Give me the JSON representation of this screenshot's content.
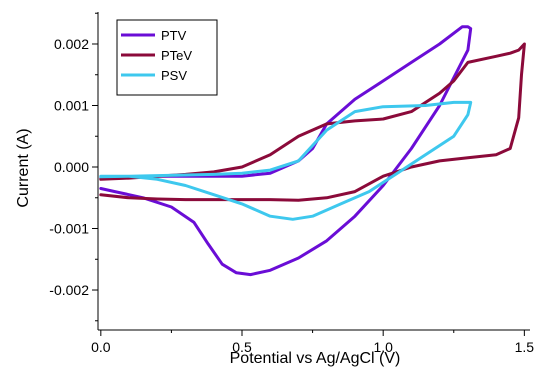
{
  "chart_data": {
    "type": "line",
    "xlabel": "Potential vs Ag/AgCl (V)",
    "ylabel": "Current (A)",
    "xlim": [
      -0.01,
      1.52
    ],
    "ylim": [
      -0.00265,
      0.00252
    ],
    "x_ticks": [
      0.0,
      0.5,
      1.0,
      1.5
    ],
    "x_tick_labels": [
      "0.0",
      "0.5",
      "1.0",
      "1.5"
    ],
    "y_ticks": [
      -0.002,
      -0.001,
      0.0,
      0.001,
      0.002
    ],
    "y_tick_labels": [
      "-0.002",
      "-0.001",
      "0.000",
      "0.001",
      "0.002"
    ],
    "grid": false,
    "legend_position": "top-left",
    "series": [
      {
        "name": "PTV",
        "color": "#6a0dd6",
        "points": [
          [
            0.0,
            -0.00035
          ],
          [
            0.05,
            -0.0004
          ],
          [
            0.15,
            -0.0005
          ],
          [
            0.25,
            -0.00065
          ],
          [
            0.33,
            -0.0009
          ],
          [
            0.38,
            -0.00125
          ],
          [
            0.43,
            -0.00158
          ],
          [
            0.48,
            -0.00172
          ],
          [
            0.53,
            -0.00175
          ],
          [
            0.6,
            -0.00168
          ],
          [
            0.7,
            -0.00148
          ],
          [
            0.8,
            -0.0012
          ],
          [
            0.9,
            -0.0008
          ],
          [
            1.0,
            -0.0003
          ],
          [
            1.1,
            0.0003
          ],
          [
            1.2,
            0.001
          ],
          [
            1.3,
            0.0019
          ],
          [
            1.31,
            0.00225
          ],
          [
            1.3,
            0.00228
          ],
          [
            1.28,
            0.00228
          ],
          [
            1.2,
            0.002
          ],
          [
            1.1,
            0.0017
          ],
          [
            1.0,
            0.0014
          ],
          [
            0.9,
            0.0011
          ],
          [
            0.8,
            0.0007
          ],
          [
            0.75,
            0.0003
          ],
          [
            0.7,
            0.0001
          ],
          [
            0.6,
            -0.0001
          ],
          [
            0.5,
            -0.00015
          ],
          [
            0.4,
            -0.00015
          ],
          [
            0.3,
            -0.00015
          ],
          [
            0.2,
            -0.00015
          ],
          [
            0.1,
            -0.00016
          ],
          [
            0.0,
            -0.00018
          ]
        ]
      },
      {
        "name": "PTeV",
        "color": "#8b0a3a",
        "points": [
          [
            0.0,
            -0.00045
          ],
          [
            0.1,
            -0.0005
          ],
          [
            0.2,
            -0.00052
          ],
          [
            0.3,
            -0.00053
          ],
          [
            0.4,
            -0.00053
          ],
          [
            0.5,
            -0.00053
          ],
          [
            0.6,
            -0.00053
          ],
          [
            0.7,
            -0.00054
          ],
          [
            0.8,
            -0.0005
          ],
          [
            0.9,
            -0.0004
          ],
          [
            1.0,
            -0.00015
          ],
          [
            1.1,
            0.0
          ],
          [
            1.2,
            0.0001
          ],
          [
            1.3,
            0.00015
          ],
          [
            1.4,
            0.0002
          ],
          [
            1.45,
            0.0003
          ],
          [
            1.48,
            0.0008
          ],
          [
            1.49,
            0.0015
          ],
          [
            1.5,
            0.002
          ],
          [
            1.48,
            0.0019
          ],
          [
            1.45,
            0.00185
          ],
          [
            1.4,
            0.0018
          ],
          [
            1.3,
            0.0017
          ],
          [
            1.25,
            0.0014
          ],
          [
            1.2,
            0.0012
          ],
          [
            1.1,
            0.0009
          ],
          [
            1.0,
            0.00078
          ],
          [
            0.9,
            0.00075
          ],
          [
            0.8,
            0.0007
          ],
          [
            0.7,
            0.0005
          ],
          [
            0.6,
            0.0002
          ],
          [
            0.5,
            0.0
          ],
          [
            0.4,
            -8e-05
          ],
          [
            0.3,
            -0.00012
          ],
          [
            0.2,
            -0.00015
          ],
          [
            0.1,
            -0.00018
          ],
          [
            0.0,
            -0.0002
          ]
        ]
      },
      {
        "name": "PSV",
        "color": "#3ec8ee",
        "points": [
          [
            0.0,
            -0.00015
          ],
          [
            0.1,
            -0.00015
          ],
          [
            0.2,
            -0.0002
          ],
          [
            0.3,
            -0.0003
          ],
          [
            0.4,
            -0.00045
          ],
          [
            0.5,
            -0.0006
          ],
          [
            0.6,
            -0.0008
          ],
          [
            0.68,
            -0.00085
          ],
          [
            0.75,
            -0.0008
          ],
          [
            0.85,
            -0.0006
          ],
          [
            0.95,
            -0.0004
          ],
          [
            1.05,
            -0.0001
          ],
          [
            1.15,
            0.0002
          ],
          [
            1.25,
            0.0005
          ],
          [
            1.3,
            0.00085
          ],
          [
            1.31,
            0.00105
          ],
          [
            1.25,
            0.00105
          ],
          [
            1.15,
            0.001
          ],
          [
            1.0,
            0.00098
          ],
          [
            0.9,
            0.0009
          ],
          [
            0.8,
            0.0006
          ],
          [
            0.7,
            0.0001
          ],
          [
            0.6,
            -5e-05
          ],
          [
            0.5,
            -0.0001
          ],
          [
            0.4,
            -0.00012
          ],
          [
            0.3,
            -0.00013
          ],
          [
            0.2,
            -0.00014
          ],
          [
            0.1,
            -0.00015
          ],
          [
            0.0,
            -0.00016
          ]
        ]
      }
    ]
  }
}
